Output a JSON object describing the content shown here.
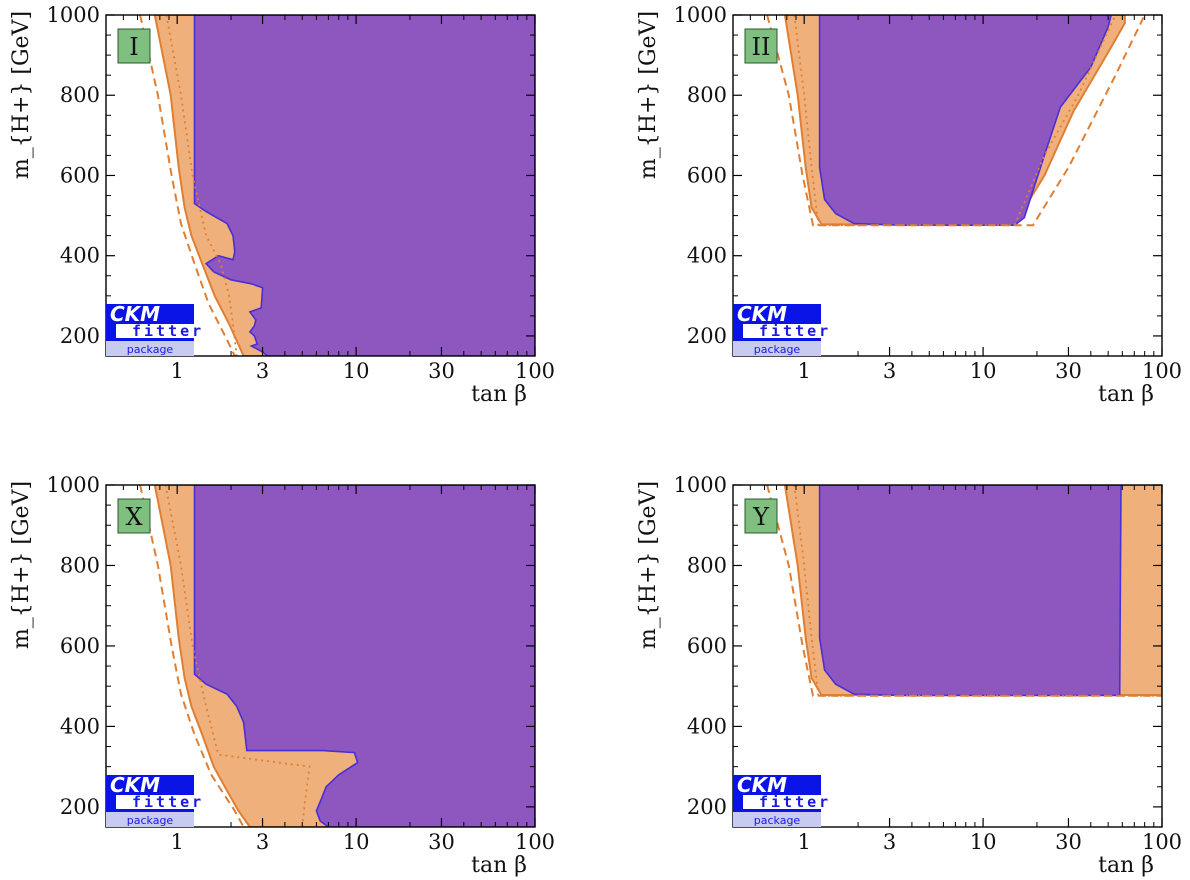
{
  "logo": {
    "line1": "CKM",
    "line2": "fitter",
    "line3": "package"
  },
  "colors": {
    "purple": "#8e56bf",
    "purple_edge": "#4a2fd6",
    "orange": "#efb07c",
    "orange_line": "#e07f32",
    "label_bg": "#7fbf7f",
    "logo_blue": "#0a14e6",
    "logo_light": "#c8cbf0"
  },
  "chart_data": [
    {
      "type": "area",
      "panel": "I",
      "xscale": "log",
      "xlim": [
        0.4,
        100
      ],
      "ylim": [
        150,
        1000
      ],
      "xlabel": "tan β",
      "ylabel": "m_{H+} [GeV]",
      "xticks": [
        "1",
        "3",
        "10",
        "30",
        "100"
      ],
      "xtick_values": [
        1,
        3,
        10,
        30,
        100
      ],
      "yticks": [
        "200",
        "400",
        "600",
        "800",
        "1000"
      ],
      "ytick_values": [
        200,
        400,
        600,
        800,
        1000
      ],
      "orange_region": [
        [
          0.75,
          1000
        ],
        [
          0.92,
          800
        ],
        [
          1.02,
          620
        ],
        [
          1.1,
          520
        ],
        [
          1.2,
          450
        ],
        [
          1.38,
          380
        ],
        [
          1.62,
          300
        ],
        [
          1.95,
          230
        ],
        [
          2.35,
          150
        ],
        [
          100,
          150
        ],
        [
          100,
          1000
        ]
      ],
      "purple_region": [
        [
          1.25,
          1000
        ],
        [
          1.25,
          530
        ],
        [
          1.45,
          510
        ],
        [
          1.9,
          480
        ],
        [
          2.05,
          450
        ],
        [
          2.1,
          410
        ],
        [
          2.05,
          390
        ],
        [
          1.7,
          400
        ],
        [
          1.45,
          380
        ],
        [
          1.6,
          360
        ],
        [
          2.0,
          340
        ],
        [
          2.6,
          330
        ],
        [
          3.0,
          320
        ],
        [
          2.95,
          270
        ],
        [
          2.55,
          260
        ],
        [
          2.75,
          240
        ],
        [
          2.7,
          225
        ],
        [
          2.55,
          210
        ],
        [
          2.7,
          200
        ],
        [
          2.8,
          180
        ],
        [
          2.6,
          175
        ],
        [
          3.0,
          160
        ],
        [
          3.2,
          150
        ],
        [
          100,
          150
        ],
        [
          100,
          1000
        ]
      ],
      "dashed_line": [
        [
          0.62,
          1000
        ],
        [
          0.78,
          800
        ],
        [
          0.93,
          600
        ],
        [
          1.05,
          480
        ],
        [
          1.25,
          380
        ],
        [
          1.5,
          280
        ],
        [
          1.9,
          190
        ],
        [
          2.1,
          150
        ]
      ],
      "dotted_line": [
        [
          0.87,
          1000
        ],
        [
          1.05,
          800
        ],
        [
          1.22,
          600
        ],
        [
          1.45,
          450
        ],
        [
          1.75,
          380
        ],
        [
          1.95,
          300
        ],
        [
          2.05,
          230
        ],
        [
          2.15,
          150
        ]
      ]
    },
    {
      "type": "area",
      "panel": "II",
      "xscale": "log",
      "xlim": [
        0.4,
        100
      ],
      "ylim": [
        150,
        1000
      ],
      "xlabel": "tan β",
      "ylabel": "m_{H+} [GeV]",
      "xticks": [
        "1",
        "3",
        "10",
        "30",
        "100"
      ],
      "xtick_values": [
        1,
        3,
        10,
        30,
        100
      ],
      "yticks": [
        "200",
        "400",
        "600",
        "800",
        "1000"
      ],
      "ytick_values": [
        200,
        400,
        600,
        800,
        1000
      ],
      "orange_region": [
        [
          0.78,
          1000
        ],
        [
          0.92,
          800
        ],
        [
          1.02,
          620
        ],
        [
          1.1,
          520
        ],
        [
          1.25,
          478
        ],
        [
          15,
          478
        ],
        [
          22,
          600
        ],
        [
          32,
          760
        ],
        [
          52,
          920
        ],
        [
          62,
          980
        ],
        [
          62,
          1000
        ]
      ],
      "purple_region": [
        [
          1.22,
          1000
        ],
        [
          1.22,
          620
        ],
        [
          1.3,
          540
        ],
        [
          1.5,
          505
        ],
        [
          1.9,
          480
        ],
        [
          3.5,
          476
        ],
        [
          15,
          476
        ],
        [
          17,
          495
        ],
        [
          22,
          650
        ],
        [
          27,
          770
        ],
        [
          40,
          870
        ],
        [
          50,
          970
        ],
        [
          52,
          1000
        ]
      ],
      "dashed_line": [
        [
          0.62,
          1000
        ],
        [
          0.82,
          800
        ],
        [
          0.98,
          600
        ],
        [
          1.12,
          476
        ],
        [
          19,
          476
        ],
        [
          30,
          620
        ],
        [
          55,
          850
        ],
        [
          80,
          1000
        ]
      ],
      "dotted_line": [
        [
          0.88,
          1000
        ],
        [
          1.0,
          800
        ],
        [
          1.1,
          620
        ],
        [
          1.2,
          476
        ],
        [
          15,
          476
        ],
        [
          22,
          650
        ],
        [
          34,
          800
        ],
        [
          55,
          1000
        ]
      ]
    },
    {
      "type": "area",
      "panel": "X",
      "xscale": "log",
      "xlim": [
        0.4,
        100
      ],
      "ylim": [
        150,
        1000
      ],
      "xlabel": "tan β",
      "ylabel": "m_{H+} [GeV]",
      "xticks": [
        "1",
        "3",
        "10",
        "30",
        "100"
      ],
      "xtick_values": [
        1,
        3,
        10,
        30,
        100
      ],
      "yticks": [
        "200",
        "400",
        "600",
        "800",
        "1000"
      ],
      "ytick_values": [
        200,
        400,
        600,
        800,
        1000
      ],
      "orange_region": [
        [
          0.75,
          1000
        ],
        [
          0.92,
          800
        ],
        [
          1.02,
          620
        ],
        [
          1.1,
          520
        ],
        [
          1.2,
          450
        ],
        [
          1.38,
          380
        ],
        [
          1.6,
          300
        ],
        [
          1.9,
          240
        ],
        [
          2.2,
          190
        ],
        [
          2.55,
          150
        ],
        [
          100,
          150
        ],
        [
          100,
          1000
        ]
      ],
      "purple_region": [
        [
          1.25,
          1000
        ],
        [
          1.25,
          530
        ],
        [
          1.45,
          505
        ],
        [
          1.9,
          480
        ],
        [
          2.15,
          450
        ],
        [
          2.35,
          410
        ],
        [
          2.45,
          340
        ],
        [
          6.5,
          340
        ],
        [
          9.8,
          335
        ],
        [
          10.2,
          310
        ],
        [
          8.0,
          280
        ],
        [
          6.8,
          250
        ],
        [
          6.4,
          220
        ],
        [
          6.0,
          190
        ],
        [
          6.3,
          165
        ],
        [
          7.0,
          150
        ],
        [
          100,
          150
        ],
        [
          100,
          1000
        ]
      ],
      "dashed_line": [
        [
          0.62,
          1000
        ],
        [
          0.78,
          800
        ],
        [
          0.93,
          600
        ],
        [
          1.05,
          480
        ],
        [
          1.25,
          380
        ],
        [
          1.55,
          280
        ],
        [
          2.1,
          190
        ],
        [
          2.35,
          150
        ]
      ],
      "dotted_line": [
        [
          0.86,
          1000
        ],
        [
          1.05,
          800
        ],
        [
          1.22,
          600
        ],
        [
          1.45,
          450
        ],
        [
          1.7,
          330
        ],
        [
          5.5,
          300
        ],
        [
          5.2,
          220
        ],
        [
          5.0,
          150
        ]
      ]
    },
    {
      "type": "area",
      "panel": "Y",
      "xscale": "log",
      "xlim": [
        0.4,
        100
      ],
      "ylim": [
        150,
        1000
      ],
      "xlabel": "tan β",
      "ylabel": "m_{H+} [GeV]",
      "xticks": [
        "1",
        "3",
        "10",
        "30",
        "100"
      ],
      "xtick_values": [
        1,
        3,
        10,
        30,
        100
      ],
      "yticks": [
        "200",
        "400",
        "600",
        "800",
        "1000"
      ],
      "ytick_values": [
        200,
        400,
        600,
        800,
        1000
      ],
      "orange_region": [
        [
          0.78,
          1000
        ],
        [
          0.92,
          800
        ],
        [
          1.02,
          620
        ],
        [
          1.1,
          520
        ],
        [
          1.25,
          478
        ],
        [
          100,
          478
        ],
        [
          100,
          1000
        ]
      ],
      "purple_region": [
        [
          1.22,
          1000
        ],
        [
          1.22,
          620
        ],
        [
          1.3,
          540
        ],
        [
          1.5,
          505
        ],
        [
          1.9,
          480
        ],
        [
          3.5,
          477
        ],
        [
          58,
          477
        ],
        [
          59,
          1000
        ]
      ],
      "dashed_line": [
        [
          0.62,
          1000
        ],
        [
          0.82,
          800
        ],
        [
          0.98,
          600
        ],
        [
          1.12,
          476
        ],
        [
          100,
          476
        ]
      ],
      "dotted_line": [
        [
          0.88,
          1000
        ],
        [
          1.0,
          800
        ],
        [
          1.1,
          620
        ],
        [
          1.2,
          476
        ],
        [
          100,
          476
        ]
      ]
    }
  ]
}
